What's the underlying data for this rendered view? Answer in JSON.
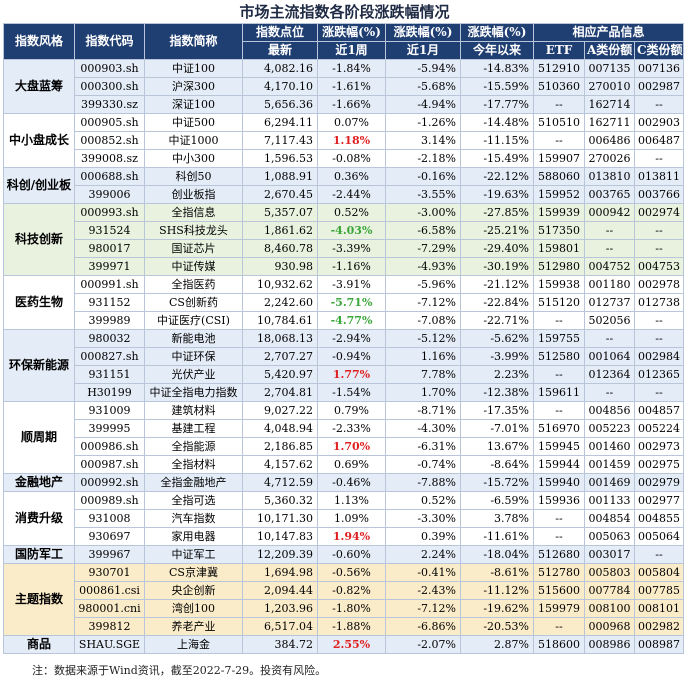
{
  "title": "市场主流指数各阶段涨跌幅情况",
  "headers": {
    "style": "指数风格",
    "code": "指数代码",
    "name": "指数简称",
    "point_top": "指数点位",
    "point_bottom": "最新",
    "chg_top1": "涨跌幅(%)",
    "chg_bottom1": "近1周",
    "chg_top2": "涨跌幅(%)",
    "chg_bottom2": "近1月",
    "chg_top3": "涨跌幅(%)",
    "chg_bottom3": "今年以来",
    "products": "相应产品信息",
    "etf": "ETF",
    "class_a": "A类份额",
    "class_c": "C类份额"
  },
  "groups": [
    {
      "style": "大盘蓝筹",
      "color": "blue",
      "rows": [
        {
          "code": "000903.sh",
          "name": "中证100",
          "point": "4,082.16",
          "w1": "-1.84%",
          "m1": "-5.94%",
          "ytd": "-14.83%",
          "etf": "512910",
          "a": "007135",
          "c": "007136"
        },
        {
          "code": "000300.sh",
          "name": "沪深300",
          "point": "4,170.10",
          "w1": "-1.61%",
          "m1": "-5.68%",
          "ytd": "-15.59%",
          "etf": "510360",
          "a": "270010",
          "c": "002987"
        },
        {
          "code": "399330.sz",
          "name": "深证100",
          "point": "5,656.36",
          "w1": "-1.66%",
          "m1": "-4.94%",
          "ytd": "-17.77%",
          "etf": "--",
          "a": "162714",
          "c": "--"
        }
      ]
    },
    {
      "style": "中小盘成长",
      "color": "white",
      "rows": [
        {
          "code": "000905.sh",
          "name": "中证500",
          "point": "6,294.11",
          "w1": "0.07%",
          "m1": "-1.26%",
          "ytd": "-14.48%",
          "etf": "510510",
          "a": "162711",
          "c": "002903"
        },
        {
          "code": "000852.sh",
          "name": "中证1000",
          "point": "7,117.43",
          "w1": "1.18%",
          "w1_style": "red",
          "m1": "3.14%",
          "ytd": "-11.15%",
          "etf": "--",
          "a": "006486",
          "c": "006487"
        },
        {
          "code": "399008.sz",
          "name": "中小300",
          "point": "1,596.53",
          "w1": "-0.08%",
          "m1": "-2.18%",
          "ytd": "-15.49%",
          "etf": "159907",
          "a": "270026",
          "c": "--"
        }
      ]
    },
    {
      "style": "科创/创业板",
      "color": "blue",
      "rows": [
        {
          "code": "000688.sh",
          "name": "科创50",
          "point": "1,088.91",
          "w1": "0.36%",
          "m1": "-0.16%",
          "ytd": "-22.12%",
          "etf": "588060",
          "a": "013810",
          "c": "013811"
        },
        {
          "code": "399006",
          "name": "创业板指",
          "point": "2,670.45",
          "w1": "-2.44%",
          "m1": "-3.55%",
          "ytd": "-19.63%",
          "etf": "159952",
          "a": "003765",
          "c": "003766"
        }
      ]
    },
    {
      "style": "科技创新",
      "color": "green",
      "rows": [
        {
          "code": "000993.sh",
          "name": "全指信息",
          "point": "5,357.07",
          "w1": "0.52%",
          "m1": "-3.00%",
          "ytd": "-27.85%",
          "etf": "159939",
          "a": "000942",
          "c": "002974"
        },
        {
          "code": "931524",
          "name": "SHS科技龙头",
          "point": "1,861.62",
          "w1": "-4.03%",
          "w1_style": "green",
          "m1": "-6.58%",
          "ytd": "-25.21%",
          "etf": "517350",
          "a": "--",
          "c": "--"
        },
        {
          "code": "980017",
          "name": "国证芯片",
          "point": "8,460.78",
          "w1": "-3.39%",
          "m1": "-7.29%",
          "ytd": "-29.40%",
          "etf": "159801",
          "a": "--",
          "c": "--"
        },
        {
          "code": "399971",
          "name": "中证传媒",
          "point": "930.98",
          "w1": "-1.16%",
          "m1": "-4.93%",
          "ytd": "-30.19%",
          "etf": "512980",
          "a": "004752",
          "c": "004753"
        }
      ]
    },
    {
      "style": "医药生物",
      "color": "white",
      "rows": [
        {
          "code": "000991.sh",
          "name": "全指医药",
          "point": "10,932.62",
          "w1": "-3.91%",
          "m1": "-5.96%",
          "ytd": "-21.12%",
          "etf": "159938",
          "a": "001180",
          "c": "002978"
        },
        {
          "code": "931152",
          "name": "CS创新药",
          "point": "2,242.60",
          "w1": "-5.71%",
          "w1_style": "green",
          "m1": "-7.12%",
          "ytd": "-22.84%",
          "etf": "515120",
          "a": "012737",
          "c": "012738"
        },
        {
          "code": "399989",
          "name": "中证医疗(CSI)",
          "point": "10,784.61",
          "w1": "-4.77%",
          "w1_style": "green",
          "m1": "-7.08%",
          "ytd": "-22.71%",
          "etf": "--",
          "a": "502056",
          "c": "--"
        }
      ]
    },
    {
      "style": "环保新能源",
      "color": "blue",
      "rows": [
        {
          "code": "980032",
          "name": "新能电池",
          "point": "18,068.13",
          "w1": "-2.94%",
          "m1": "-5.12%",
          "ytd": "-5.62%",
          "etf": "159755",
          "a": "--",
          "c": "--"
        },
        {
          "code": "000827.sh",
          "name": "中证环保",
          "point": "2,707.27",
          "w1": "-0.94%",
          "m1": "1.16%",
          "ytd": "-3.99%",
          "etf": "512580",
          "a": "001064",
          "c": "002984"
        },
        {
          "code": "931151",
          "name": "光伏产业",
          "point": "5,420.97",
          "w1": "1.77%",
          "w1_style": "red",
          "m1": "7.78%",
          "ytd": "2.23%",
          "etf": "--",
          "a": "012364",
          "c": "012365"
        },
        {
          "code": "H30199",
          "name": "中证全指电力指数",
          "point": "2,704.81",
          "w1": "-1.54%",
          "m1": "1.70%",
          "ytd": "-12.38%",
          "etf": "159611",
          "a": "--",
          "c": "--"
        }
      ]
    },
    {
      "style": "顺周期",
      "color": "white",
      "rows": [
        {
          "code": "931009",
          "name": "建筑材料",
          "point": "9,027.22",
          "w1": "0.79%",
          "m1": "-8.71%",
          "ytd": "-17.35%",
          "etf": "--",
          "a": "004856",
          "c": "004857"
        },
        {
          "code": "399995",
          "name": "基建工程",
          "point": "4,048.94",
          "w1": "-2.33%",
          "m1": "-4.30%",
          "ytd": "-7.01%",
          "etf": "516970",
          "a": "005223",
          "c": "005224"
        },
        {
          "code": "000986.sh",
          "name": "全指能源",
          "point": "2,186.85",
          "w1": "1.70%",
          "w1_style": "red",
          "m1": "-6.31%",
          "ytd": "13.67%",
          "etf": "159945",
          "a": "001460",
          "c": "002973"
        },
        {
          "code": "000987.sh",
          "name": "全指材料",
          "point": "4,157.62",
          "w1": "0.69%",
          "m1": "-0.74%",
          "ytd": "-8.64%",
          "etf": "159944",
          "a": "001459",
          "c": "002975"
        }
      ]
    },
    {
      "style": "金融地产",
      "color": "blue",
      "rows": [
        {
          "code": "000992.sh",
          "name": "全指金融地产",
          "point": "4,712.59",
          "w1": "-0.46%",
          "m1": "-7.88%",
          "ytd": "-15.72%",
          "etf": "159940",
          "a": "001469",
          "c": "002979"
        }
      ]
    },
    {
      "style": "消费升级",
      "color": "white",
      "rows": [
        {
          "code": "000989.sh",
          "name": "全指可选",
          "point": "5,360.32",
          "w1": "1.13%",
          "m1": "0.52%",
          "ytd": "-6.59%",
          "etf": "159936",
          "a": "001133",
          "c": "002977"
        },
        {
          "code": "931008",
          "name": "汽车指数",
          "point": "10,171.30",
          "w1": "1.09%",
          "m1": "-3.30%",
          "ytd": "3.78%",
          "etf": "--",
          "a": "004854",
          "c": "004855"
        },
        {
          "code": "930697",
          "name": "家用电器",
          "point": "10,147.83",
          "w1": "1.94%",
          "w1_style": "red",
          "m1": "0.39%",
          "ytd": "-11.61%",
          "etf": "--",
          "a": "005063",
          "c": "005064"
        }
      ]
    },
    {
      "style": "国防军工",
      "color": "blue",
      "rows": [
        {
          "code": "399967",
          "name": "中证军工",
          "point": "12,209.39",
          "w1": "-0.60%",
          "m1": "2.24%",
          "ytd": "-18.04%",
          "etf": "512680",
          "a": "003017",
          "c": "--"
        }
      ]
    },
    {
      "style": "主题指数",
      "color": "yellow",
      "rows": [
        {
          "code": "930701",
          "name": "CS京津冀",
          "point": "1,694.98",
          "w1": "-0.56%",
          "m1": "-0.41%",
          "ytd": "-8.61%",
          "etf": "512780",
          "a": "005803",
          "c": "005804"
        },
        {
          "code": "000861.csi",
          "name": "央企创新",
          "point": "2,094.44",
          "w1": "-0.82%",
          "m1": "-2.43%",
          "ytd": "-11.12%",
          "etf": "515600",
          "a": "007784",
          "c": "007785"
        },
        {
          "code": "980001.cni",
          "name": "湾创100",
          "point": "1,203.96",
          "w1": "-1.80%",
          "m1": "-7.12%",
          "ytd": "-19.62%",
          "etf": "159979",
          "a": "008100",
          "c": "008101"
        },
        {
          "code": "399812",
          "name": "养老产业",
          "point": "6,517.04",
          "w1": "-1.88%",
          "m1": "-6.86%",
          "ytd": "-20.53%",
          "etf": "--",
          "a": "000968",
          "c": "002982"
        }
      ]
    },
    {
      "style": "商品",
      "color": "blue",
      "rows": [
        {
          "code": "SHAU.SGE",
          "name": "上海金",
          "point": "384.72",
          "w1": "2.55%",
          "w1_style": "red",
          "m1": "-2.07%",
          "ytd": "2.87%",
          "etf": "518600",
          "a": "008986",
          "c": "008987"
        }
      ]
    }
  ],
  "note": "注：数据来源于Wind资讯，截至2022-7-29。投资有风险。"
}
